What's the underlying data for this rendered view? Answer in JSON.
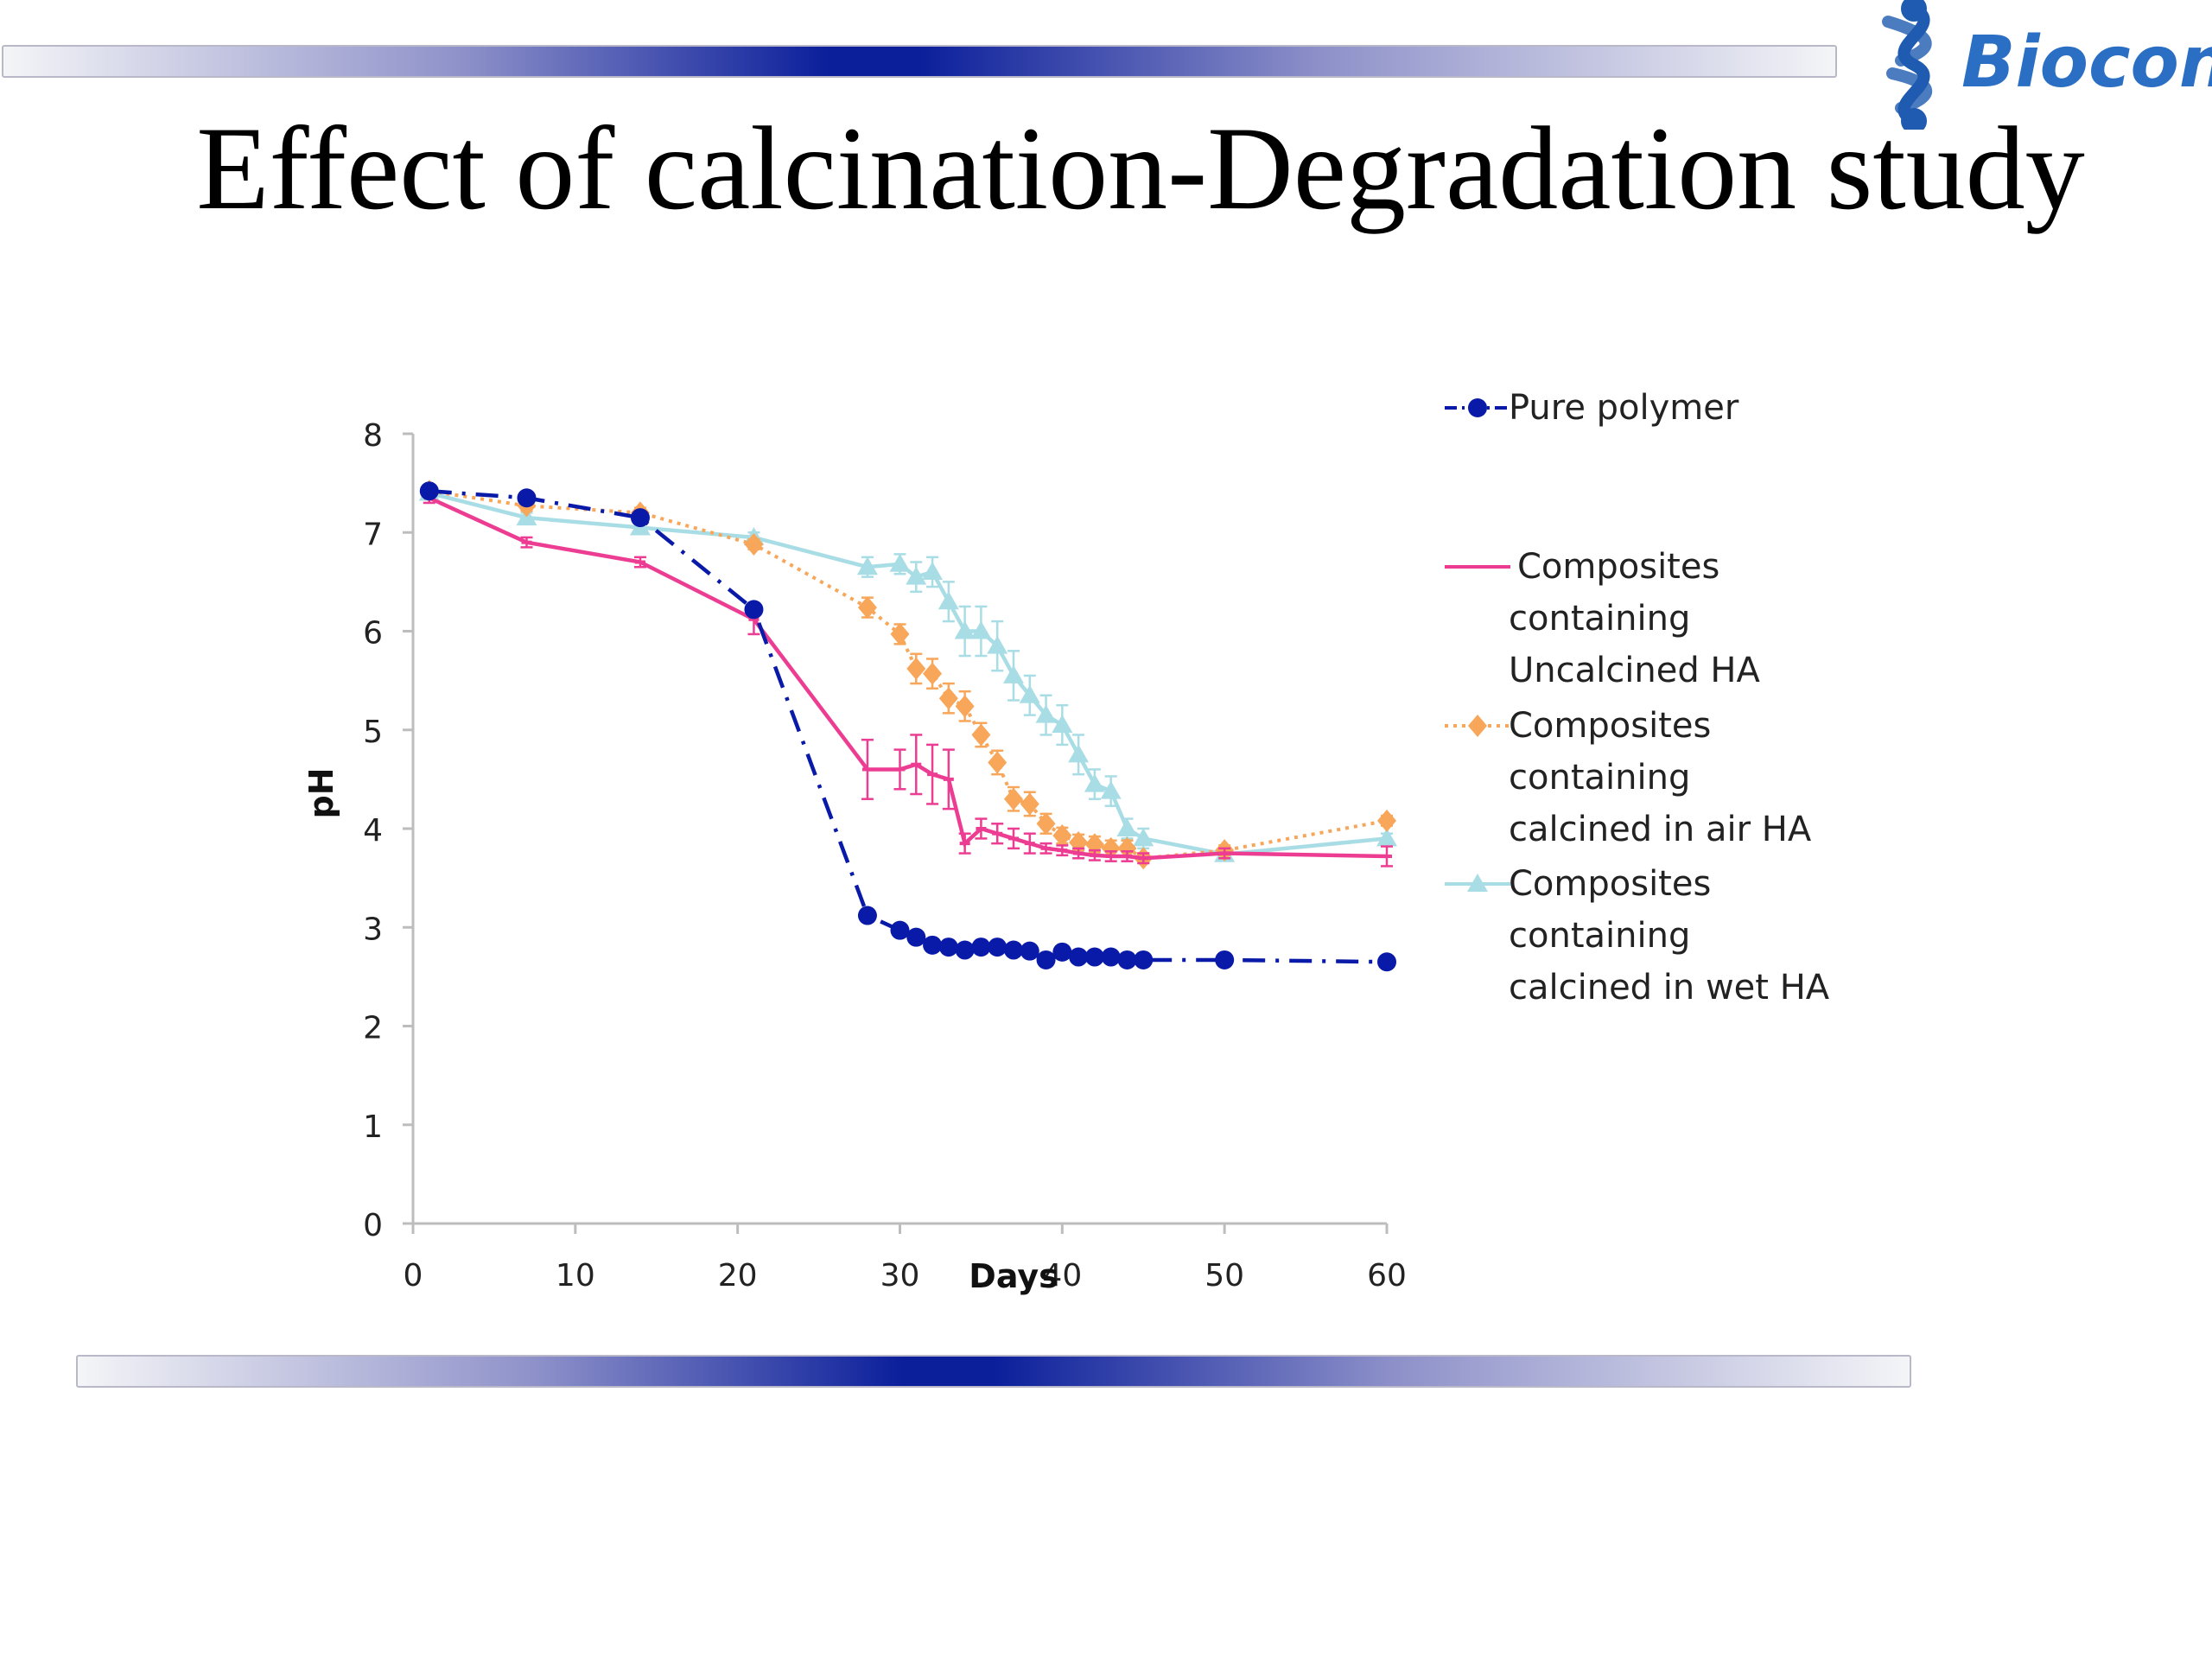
{
  "slide": {
    "title": "Effect of calcination-Degradation study",
    "logo_text": "Biocon",
    "colors": {
      "band_dark": "#0b1f9b",
      "logo": "#2a6fc4"
    }
  },
  "chart_data": {
    "type": "line",
    "xlabel": "Days",
    "ylabel": "pH",
    "xlim": [
      0,
      60
    ],
    "ylim": [
      0,
      8
    ],
    "xticks": [
      0,
      10,
      20,
      30,
      40,
      50,
      60
    ],
    "yticks": [
      0,
      1,
      2,
      3,
      4,
      5,
      6,
      7,
      8
    ],
    "grid": false,
    "legend_position": "right",
    "series": [
      {
        "name": "Pure polymer",
        "color": "#0a1aa8",
        "marker": "circle",
        "line_style": "dashdot",
        "points": [
          [
            1,
            7.42
          ],
          [
            7,
            7.35
          ],
          [
            14,
            7.15
          ],
          [
            21,
            6.22
          ],
          [
            28,
            3.12
          ],
          [
            30,
            2.97
          ],
          [
            31,
            2.9
          ],
          [
            32,
            2.82
          ],
          [
            33,
            2.8
          ],
          [
            34,
            2.77
          ],
          [
            35,
            2.8
          ],
          [
            36,
            2.8
          ],
          [
            37,
            2.77
          ],
          [
            38,
            2.76
          ],
          [
            39,
            2.67
          ],
          [
            40,
            2.75
          ],
          [
            41,
            2.7
          ],
          [
            42,
            2.7
          ],
          [
            43,
            2.7
          ],
          [
            44,
            2.67
          ],
          [
            45,
            2.67
          ],
          [
            50,
            2.67
          ],
          [
            60,
            2.65
          ]
        ]
      },
      {
        "name": "Composites containing Uncalcined HA",
        "name_lines": [
          "Composites",
          "containing",
          "Uncalcined HA"
        ],
        "color": "#ec3d93",
        "marker": "dash",
        "line_style": "solid",
        "points": [
          [
            1,
            7.35
          ],
          [
            7,
            6.9
          ],
          [
            14,
            6.7
          ],
          [
            21,
            6.12
          ],
          [
            28,
            4.6
          ],
          [
            30,
            4.6
          ],
          [
            31,
            4.65
          ],
          [
            32,
            4.55
          ],
          [
            33,
            4.5
          ],
          [
            34,
            3.85
          ],
          [
            35,
            4.0
          ],
          [
            36,
            3.95
          ],
          [
            37,
            3.9
          ],
          [
            38,
            3.85
          ],
          [
            39,
            3.8
          ],
          [
            40,
            3.78
          ],
          [
            41,
            3.75
          ],
          [
            42,
            3.73
          ],
          [
            43,
            3.72
          ],
          [
            44,
            3.72
          ],
          [
            45,
            3.7
          ],
          [
            50,
            3.75
          ],
          [
            60,
            3.72
          ]
        ],
        "errors": [
          0.05,
          0.05,
          0.05,
          0.15,
          0.3,
          0.2,
          0.3,
          0.3,
          0.3,
          0.1,
          0.1,
          0.1,
          0.1,
          0.1,
          0.05,
          0.05,
          0.05,
          0.05,
          0.05,
          0.05,
          0.05,
          0.05,
          0.1
        ]
      },
      {
        "name": "Composites containing calcined in air HA",
        "name_lines": [
          "Composites",
          "containing",
          "calcined in air HA"
        ],
        "color": "#f7a65a",
        "marker": "diamond",
        "line_style": "dotted",
        "points": [
          [
            1,
            7.42
          ],
          [
            7,
            7.27
          ],
          [
            14,
            7.2
          ],
          [
            21,
            6.88
          ],
          [
            28,
            6.24
          ],
          [
            30,
            5.97
          ],
          [
            31,
            5.62
          ],
          [
            32,
            5.57
          ],
          [
            33,
            5.32
          ],
          [
            34,
            5.24
          ],
          [
            35,
            4.95
          ],
          [
            36,
            4.67
          ],
          [
            37,
            4.3
          ],
          [
            38,
            4.25
          ],
          [
            39,
            4.05
          ],
          [
            40,
            3.93
          ],
          [
            41,
            3.86
          ],
          [
            42,
            3.84
          ],
          [
            43,
            3.8
          ],
          [
            44,
            3.8
          ],
          [
            45,
            3.7
          ],
          [
            50,
            3.78
          ],
          [
            60,
            4.08
          ]
        ],
        "errors": [
          0.05,
          0.05,
          0.05,
          0.05,
          0.1,
          0.1,
          0.15,
          0.15,
          0.15,
          0.15,
          0.12,
          0.12,
          0.12,
          0.12,
          0.1,
          0.08,
          0.08,
          0.08,
          0.08,
          0.08,
          0.05,
          0.05,
          0.05
        ]
      },
      {
        "name": "Composites containing calcined in wet HA",
        "name_lines": [
          "Composites",
          "containing",
          "calcined in wet HA"
        ],
        "color": "#a9dde5",
        "marker": "triangle",
        "line_style": "solid",
        "points": [
          [
            1,
            7.4
          ],
          [
            7,
            7.15
          ],
          [
            14,
            7.05
          ],
          [
            21,
            6.95
          ],
          [
            28,
            6.65
          ],
          [
            30,
            6.68
          ],
          [
            31,
            6.55
          ],
          [
            32,
            6.6
          ],
          [
            33,
            6.3
          ],
          [
            34,
            6.0
          ],
          [
            35,
            6.0
          ],
          [
            36,
            5.85
          ],
          [
            37,
            5.55
          ],
          [
            38,
            5.35
          ],
          [
            39,
            5.15
          ],
          [
            40,
            5.05
          ],
          [
            41,
            4.75
          ],
          [
            42,
            4.45
          ],
          [
            43,
            4.38
          ],
          [
            44,
            4.0
          ],
          [
            45,
            3.9
          ],
          [
            50,
            3.74
          ],
          [
            60,
            3.9
          ]
        ],
        "errors": [
          0.05,
          0.05,
          0.05,
          0.05,
          0.1,
          0.1,
          0.15,
          0.15,
          0.2,
          0.25,
          0.25,
          0.25,
          0.25,
          0.2,
          0.2,
          0.2,
          0.2,
          0.15,
          0.15,
          0.1,
          0.1,
          0.05,
          0.05
        ]
      }
    ]
  }
}
